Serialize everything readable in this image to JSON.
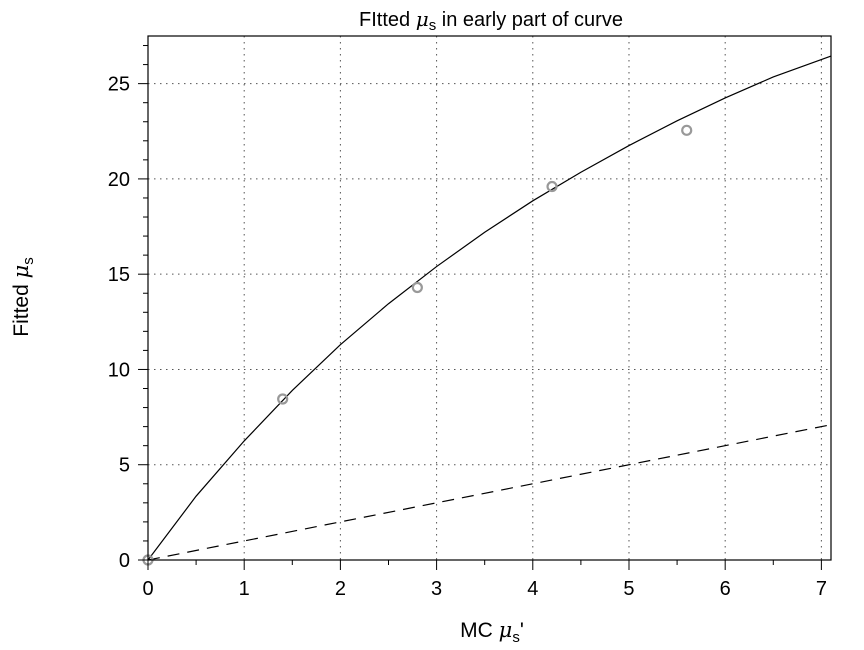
{
  "chart_data": {
    "type": "scatter",
    "title": {
      "prefix": "FItted ",
      "symbol": "μ",
      "subscript": "s",
      "suffix": " in early part of curve"
    },
    "xlabel": {
      "prefix": "MC ",
      "symbol": "μ",
      "subscript": "s",
      "suffix": "'"
    },
    "ylabel": {
      "prefix": "Fitted ",
      "symbol": "μ",
      "subscript": "s",
      "suffix": ""
    },
    "xlim": [
      0,
      7.1
    ],
    "ylim": [
      0,
      27.5
    ],
    "xticks": [
      0,
      1,
      2,
      3,
      4,
      5,
      6,
      7
    ],
    "yticks": [
      0,
      5,
      10,
      15,
      20,
      25
    ],
    "grid": true,
    "series": [
      {
        "kind": "points",
        "marker": "open-circle",
        "color": "#999999",
        "x": [
          0,
          1.4,
          2.8,
          4.2,
          5.6
        ],
        "y": [
          0,
          8.45,
          14.3,
          19.6,
          22.55
        ]
      },
      {
        "kind": "line",
        "style": "solid",
        "color": "#000000",
        "x": [
          0,
          0.5,
          1,
          1.5,
          2,
          2.5,
          3,
          3.5,
          4,
          4.5,
          5,
          5.5,
          6,
          6.5,
          7.1
        ],
        "y": [
          0,
          3.35,
          6.25,
          8.9,
          11.3,
          13.45,
          15.4,
          17.2,
          18.85,
          20.35,
          21.75,
          23.05,
          24.25,
          25.35,
          26.45
        ]
      },
      {
        "kind": "line",
        "style": "dashed",
        "color": "#000000",
        "x": [
          0,
          7.1
        ],
        "y": [
          0,
          7.1
        ]
      }
    ]
  }
}
